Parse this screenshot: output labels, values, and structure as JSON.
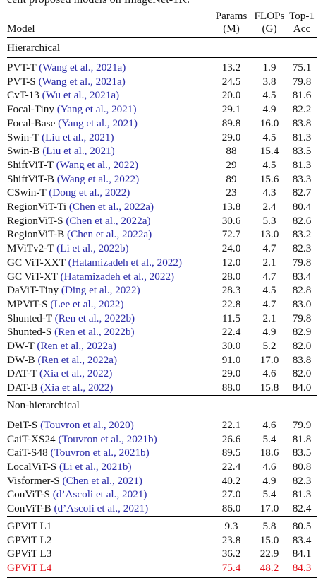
{
  "caption_fragment": "cent proposed models on ImageNet-1K.",
  "header": {
    "model": "Model",
    "params_top": "Params",
    "params_bottom": "(M)",
    "flops_top": "FLOPs",
    "flops_bottom": "(G)",
    "acc_top": "Top-1",
    "acc_bottom": "Acc"
  },
  "sections": [
    {
      "title": "Hierarchical",
      "rows": [
        {
          "name": "PVT-T",
          "cite": "(Wang et al., 2021a)",
          "params": "13.2",
          "flops": "1.9",
          "acc": "75.1"
        },
        {
          "name": "PVT-S",
          "cite": "(Wang et al., 2021a)",
          "params": "24.5",
          "flops": "3.8",
          "acc": "79.8"
        },
        {
          "name": "CvT-13",
          "cite": "(Wu et al., 2021a)",
          "params": "20.0",
          "flops": "4.5",
          "acc": "81.6"
        },
        {
          "name": "Focal-Tiny",
          "cite": "(Yang et al., 2021)",
          "params": "29.1",
          "flops": "4.9",
          "acc": "82.2"
        },
        {
          "name": "Focal-Base",
          "cite": "(Yang et al., 2021)",
          "params": "89.8",
          "flops": "16.0",
          "acc": "83.8"
        },
        {
          "name": "Swin-T",
          "cite": "(Liu et al., 2021)",
          "params": "29.0",
          "flops": "4.5",
          "acc": "81.3"
        },
        {
          "name": "Swin-B",
          "cite": "(Liu et al., 2021)",
          "params": "88",
          "flops": "15.4",
          "acc": "83.5"
        },
        {
          "name": "ShiftViT-T",
          "cite": "(Wang et al., 2022)",
          "params": "29",
          "flops": "4.5",
          "acc": "81.3"
        },
        {
          "name": "ShiftViT-B",
          "cite": "(Wang et al., 2022)",
          "params": "89",
          "flops": "15.6",
          "acc": "83.3"
        },
        {
          "name": "CSwin-T",
          "cite": "(Dong et al., 2022)",
          "params": "23",
          "flops": "4.3",
          "acc": "82.7"
        },
        {
          "name": "RegionViT-Ti",
          "cite": "(Chen et al., 2022a)",
          "params": "13.8",
          "flops": "2.4",
          "acc": "80.4"
        },
        {
          "name": "RegionViT-S",
          "cite": "(Chen et al., 2022a)",
          "params": "30.6",
          "flops": "5.3",
          "acc": "82.6"
        },
        {
          "name": "RegionViT-B",
          "cite": "(Chen et al., 2022a)",
          "params": "72.7",
          "flops": "13.0",
          "acc": "83.2"
        },
        {
          "name": "MViTv2-T",
          "cite": "(Li et al., 2022b)",
          "params": "24.0",
          "flops": "4.7",
          "acc": "82.3"
        },
        {
          "name": "GC ViT-XXT",
          "cite": "(Hatamizadeh et al., 2022)",
          "params": "12.0",
          "flops": "2.1",
          "acc": "79.8"
        },
        {
          "name": "GC ViT-XT",
          "cite": "(Hatamizadeh et al., 2022)",
          "params": "28.0",
          "flops": "4.7",
          "acc": "83.4"
        },
        {
          "name": "DaViT-Tiny",
          "cite": "(Ding et al., 2022)",
          "params": "28.3",
          "flops": "4.5",
          "acc": "82.8"
        },
        {
          "name": "MPViT-S",
          "cite": "(Lee et al., 2022)",
          "params": "22.8",
          "flops": "4.7",
          "acc": "83.0"
        },
        {
          "name": "Shunted-T",
          "cite": "(Ren et al., 2022b)",
          "params": "11.5",
          "flops": "2.1",
          "acc": "79.8"
        },
        {
          "name": "Shunted-S",
          "cite": "(Ren et al., 2022b)",
          "params": "22.4",
          "flops": "4.9",
          "acc": "82.9"
        },
        {
          "name": "DW-T",
          "cite": "(Ren et al., 2022a)",
          "params": "30.0",
          "flops": "5.2",
          "acc": "82.0"
        },
        {
          "name": "DW-B",
          "cite": "(Ren et al., 2022a)",
          "params": "91.0",
          "flops": "17.0",
          "acc": "83.8"
        },
        {
          "name": "DAT-T",
          "cite": "(Xia et al., 2022)",
          "params": "29.0",
          "flops": "4.6",
          "acc": "82.0"
        },
        {
          "name": "DAT-B",
          "cite": "(Xia et al., 2022)",
          "params": "88.0",
          "flops": "15.8",
          "acc": "84.0"
        }
      ]
    },
    {
      "title": "Non-hierarchical",
      "rows": [
        {
          "name": "DeiT-S",
          "cite": "(Touvron et al., 2020)",
          "params": "22.1",
          "flops": "4.6",
          "acc": "79.9"
        },
        {
          "name": "CaiT-XS24",
          "cite": "(Touvron et al., 2021b)",
          "params": "26.6",
          "flops": "5.4",
          "acc": "81.8"
        },
        {
          "name": "CaiT-S48",
          "cite": "(Touvron et al., 2021b)",
          "params": "89.5",
          "flops": "18.6",
          "acc": "83.5"
        },
        {
          "name": "LocalViT-S",
          "cite": "(Li et al., 2021b)",
          "params": "22.4",
          "flops": "4.6",
          "acc": "80.8"
        },
        {
          "name": "Visformer-S",
          "cite": "(Chen et al., 2021)",
          "params": "40.2",
          "flops": "4.9",
          "acc": "82.3"
        },
        {
          "name": "ConViT-S",
          "cite": "(d’Ascoli et al., 2021)",
          "params": "27.0",
          "flops": "5.4",
          "acc": "81.3"
        },
        {
          "name": "ConViT-B",
          "cite": "(d’Ascoli et al., 2021)",
          "params": "86.0",
          "flops": "17.0",
          "acc": "82.4"
        }
      ]
    }
  ],
  "gpvit_rows": [
    {
      "name": "GPViT L1",
      "params": "9.3",
      "flops": "5.8",
      "acc": "80.5",
      "highlight": false
    },
    {
      "name": "GPViT L2",
      "params": "23.8",
      "flops": "15.0",
      "acc": "83.4",
      "highlight": false
    },
    {
      "name": "GPViT L3",
      "params": "36.2",
      "flops": "22.9",
      "acc": "84.1",
      "highlight": false
    },
    {
      "name": "GPViT L4",
      "params": "75.4",
      "flops": "48.2",
      "acc": "84.3",
      "highlight": true
    }
  ],
  "colors": {
    "citation": "#2a2aa8",
    "highlight": "#e3101a",
    "text": "#111111"
  }
}
